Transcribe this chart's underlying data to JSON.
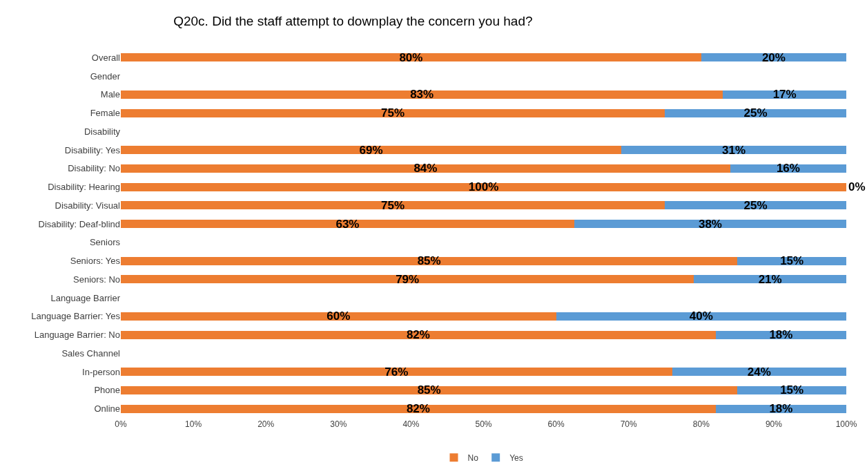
{
  "chart_data": {
    "type": "bar",
    "orientation": "horizontal",
    "stacked": true,
    "title": "Q20c. Did the staff attempt to downplay the concern you had?",
    "categories": [
      "Overall",
      "Gender",
      "Male",
      "Female",
      "Disability",
      "Disability: Yes",
      "Disability: No",
      "Disability: Hearing",
      "Disability: Visual",
      "Disability: Deaf-blind",
      "Seniors",
      "Seniors: Yes",
      "Seniors: No",
      "Language Barrier",
      "Language Barrier: Yes",
      "Language Barrier: No",
      "Sales Channel",
      "In-person",
      "Phone",
      "Online"
    ],
    "series": [
      {
        "name": "No",
        "color": "#ed7d31",
        "values": [
          80,
          null,
          83,
          75,
          null,
          69,
          84,
          100,
          75,
          62.5,
          null,
          85,
          79,
          null,
          60,
          82,
          null,
          76,
          85,
          82
        ],
        "value_labels": [
          "80%",
          null,
          "83%",
          "75%",
          null,
          "69%",
          "84%",
          "100%",
          "75%",
          "63%",
          null,
          "85%",
          "79%",
          null,
          "60%",
          "82%",
          null,
          "76%",
          "85%",
          "82%"
        ]
      },
      {
        "name": "Yes",
        "color": "#5b9bd5",
        "values": [
          20,
          null,
          17,
          25,
          null,
          31,
          16,
          0,
          25,
          37.5,
          null,
          15,
          21,
          null,
          40,
          18,
          null,
          24,
          15,
          18
        ],
        "value_labels": [
          "20%",
          null,
          "17%",
          "25%",
          null,
          "31%",
          "16%",
          "0%",
          "25%",
          "38%",
          null,
          "15%",
          "21%",
          null,
          "40%",
          "18%",
          null,
          "24%",
          "15%",
          "18%"
        ]
      }
    ],
    "xlim": [
      0,
      100
    ],
    "xticks": [
      {
        "value": 0,
        "label": "0%"
      },
      {
        "value": 10,
        "label": "10%"
      },
      {
        "value": 20,
        "label": "20%"
      },
      {
        "value": 30,
        "label": "30%"
      },
      {
        "value": 40,
        "label": "40%"
      },
      {
        "value": 50,
        "label": "50%"
      },
      {
        "value": 60,
        "label": "60%"
      },
      {
        "value": 70,
        "label": "70%"
      },
      {
        "value": 80,
        "label": "80%"
      },
      {
        "value": 90,
        "label": "90%"
      },
      {
        "value": 100,
        "label": "100%"
      }
    ],
    "legend": "bottom"
  }
}
